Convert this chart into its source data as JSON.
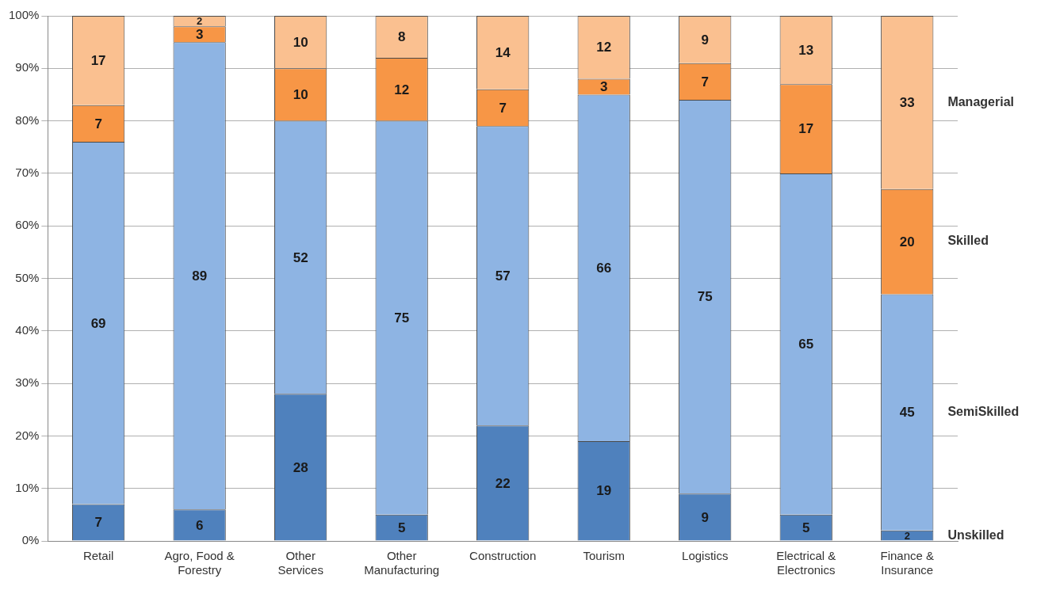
{
  "chart_data": {
    "type": "bar",
    "stacked": true,
    "categories": [
      "Retail",
      "Agro, Food & Forestry",
      "Other Services",
      "Other Manufacturing",
      "Construction",
      "Tourism",
      "Logistics",
      "Electrical & Electronics",
      "Finance & Insurance"
    ],
    "series": [
      {
        "name": "Unskilled",
        "color": "#4f81bd",
        "values": [
          7,
          6,
          28,
          5,
          22,
          19,
          9,
          5,
          2
        ]
      },
      {
        "name": "SemiSkilled",
        "color": "#8eb4e3",
        "values": [
          69,
          89,
          52,
          75,
          57,
          66,
          75,
          65,
          45
        ]
      },
      {
        "name": "Skilled",
        "color": "#f79646",
        "values": [
          7,
          3,
          10,
          12,
          7,
          3,
          7,
          17,
          20
        ]
      },
      {
        "name": "Managerial",
        "color": "#fac090",
        "values": [
          17,
          2,
          10,
          8,
          14,
          12,
          9,
          13,
          33
        ]
      }
    ],
    "ylim": [
      0,
      100
    ],
    "yticks": [
      {
        "value": 0,
        "label": "0%"
      },
      {
        "value": 10,
        "label": "10%"
      },
      {
        "value": 20,
        "label": "20%"
      },
      {
        "value": 30,
        "label": "30%"
      },
      {
        "value": 40,
        "label": "40%"
      },
      {
        "value": 50,
        "label": "50%"
      },
      {
        "value": 60,
        "label": "60%"
      },
      {
        "value": 70,
        "label": "70%"
      },
      {
        "value": 80,
        "label": "80%"
      },
      {
        "value": 90,
        "label": "90%"
      },
      {
        "value": 100,
        "label": "100%"
      }
    ],
    "grid": "y",
    "legend": false,
    "data_labels": true
  }
}
